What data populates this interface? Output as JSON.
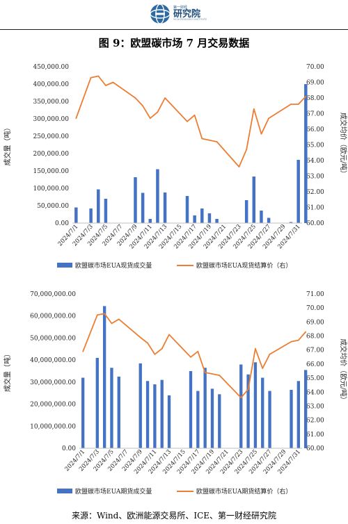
{
  "header": {
    "logo_top": "第一财经",
    "logo_main": "研究院",
    "logo_sub": "YICAI RESEARCH INSTITUTE"
  },
  "figure_title": "图 9：欧盟碳市场 7 月交易数据",
  "source": "来源：Wind、欧洲能源交易所、ICE、第一财经研究院",
  "colors": {
    "bar": "#4472c4",
    "line": "#ed7d31"
  },
  "chart_data": [
    {
      "type": "bar+line",
      "dates": [
        "2024/7/1",
        "2024/7/2",
        "2024/7/3",
        "2024/7/4",
        "2024/7/5",
        "2024/7/8",
        "2024/7/9",
        "2024/7/10",
        "2024/7/11",
        "2024/7/12",
        "2024/7/15",
        "2024/7/16",
        "2024/7/17",
        "2024/7/18",
        "2024/7/19",
        "2024/7/22",
        "2024/7/23",
        "2024/7/24",
        "2024/7/25",
        "2024/7/26",
        "2024/7/29",
        "2024/7/30",
        "2024/7/31"
      ],
      "day_index": [
        0,
        2,
        3,
        4,
        5,
        8,
        9,
        10,
        11,
        12,
        15,
        16,
        17,
        18,
        19,
        22,
        23,
        24,
        25,
        26,
        29,
        30,
        31
      ],
      "xtick_labels": [
        "2024/7/1",
        "2024/7/3",
        "2024/7/5",
        "2024/7/7",
        "2024/7/9",
        "2024/7/11",
        "2024/7/13",
        "2024/7/15",
        "2024/7/17",
        "2024/7/19",
        "2024/7/21",
        "2024/7/23",
        "2024/7/25",
        "2024/7/27",
        "2024/7/29",
        "2024/7/31"
      ],
      "bar_series": {
        "name": "欧盟碳市场EUA现货成交量",
        "day_index": [
          0,
          2,
          3,
          4,
          8,
          9,
          10,
          11,
          12,
          15,
          16,
          17,
          18,
          19,
          22,
          23,
          24,
          25,
          26,
          29,
          30,
          31
        ],
        "values": [
          45000,
          42000,
          97000,
          70000,
          132000,
          87000,
          12000,
          155000,
          88000,
          78000,
          22000,
          42000,
          28000,
          12000,
          1000,
          66000,
          134000,
          36000,
          15000,
          3000,
          182000,
          400000
        ]
      },
      "line_series": {
        "name": "欧盟碳市场EUA现货结算价（右）",
        "day_index": [
          0,
          2,
          3,
          4,
          5,
          8,
          9,
          10,
          11,
          12,
          15,
          16,
          17,
          18,
          19,
          22,
          23,
          24,
          25,
          26,
          29,
          30,
          31
        ],
        "values": [
          66.7,
          69.3,
          69.4,
          68.8,
          69.0,
          68.0,
          67.5,
          66.7,
          67.1,
          68.0,
          66.5,
          66.9,
          65.4,
          65.3,
          65.2,
          63.6,
          64.7,
          67.3,
          65.7,
          66.7,
          67.6,
          67.6,
          68.1
        ]
      },
      "ylabel_left": "成交量（吨）",
      "ylabel_right": "成交均价（欧元/吨）",
      "y_left": {
        "min": 0,
        "max": 450000,
        "step": 50000,
        "decimals": 2
      },
      "y_right": {
        "min": 60,
        "max": 70,
        "step": 1,
        "decimals": 2
      }
    },
    {
      "type": "bar+line",
      "dates": [
        "2024/7/1",
        "2024/7/2",
        "2024/7/3",
        "2024/7/4",
        "2024/7/5",
        "2024/7/8",
        "2024/7/9",
        "2024/7/10",
        "2024/7/11",
        "2024/7/12",
        "2024/7/15",
        "2024/7/16",
        "2024/7/17",
        "2024/7/18",
        "2024/7/19",
        "2024/7/22",
        "2024/7/23",
        "2024/7/24",
        "2024/7/25",
        "2024/7/26",
        "2024/7/29",
        "2024/7/30",
        "2024/7/31"
      ],
      "day_index": [
        0,
        2,
        3,
        4,
        5,
        8,
        9,
        10,
        11,
        12,
        15,
        16,
        17,
        18,
        19,
        22,
        23,
        24,
        25,
        26,
        29,
        30,
        31
      ],
      "xtick_labels": [
        "2024/7/1",
        "2024/7/3",
        "2024/7/5",
        "2024/7/7",
        "2024/7/9",
        "2024/7/11",
        "2024/7/13",
        "2024/7/15",
        "2024/7/17",
        "2024/7/19",
        "2024/7/21",
        "2024/7/23",
        "2024/7/25",
        "2024/7/27",
        "2024/7/29",
        "2024/7/31"
      ],
      "bar_series": {
        "name": "欧盟碳市场EUA期货成交量",
        "day_index": [
          0,
          2,
          3,
          4,
          5,
          8,
          9,
          10,
          11,
          12,
          15,
          16,
          17,
          18,
          19,
          22,
          23,
          24,
          25,
          26,
          29,
          30,
          31
        ],
        "values": [
          32000000,
          41000000,
          64500000,
          36500000,
          32500000,
          38500000,
          30500000,
          29000000,
          31000000,
          24000000,
          35000000,
          26000000,
          36500000,
          27000000,
          24500000,
          38000000,
          33500000,
          39000000,
          32000000,
          26000000,
          26500000,
          30500000,
          35500000
        ]
      },
      "line_series": {
        "name": "欧盟碳市场EUA期货结算价（右）",
        "day_index": [
          0,
          2,
          3,
          4,
          5,
          8,
          9,
          10,
          11,
          12,
          15,
          16,
          17,
          18,
          19,
          22,
          23,
          24,
          25,
          26,
          29,
          30,
          31
        ],
        "values": [
          66.9,
          69.5,
          69.6,
          68.9,
          69.2,
          67.9,
          67.5,
          66.7,
          67.1,
          68.1,
          66.5,
          66.9,
          65.4,
          65.3,
          65.2,
          63.6,
          64.2,
          67.1,
          65.7,
          66.7,
          67.6,
          67.7,
          68.3
        ]
      },
      "ylabel_left": "成交量（吨）",
      "ylabel_right": "成交均价（欧元/吨）",
      "y_left": {
        "min": 0,
        "max": 70000000,
        "step": 10000000,
        "decimals": 2
      },
      "y_right": {
        "min": 60,
        "max": 71,
        "step": 1,
        "decimals": 2
      }
    }
  ]
}
